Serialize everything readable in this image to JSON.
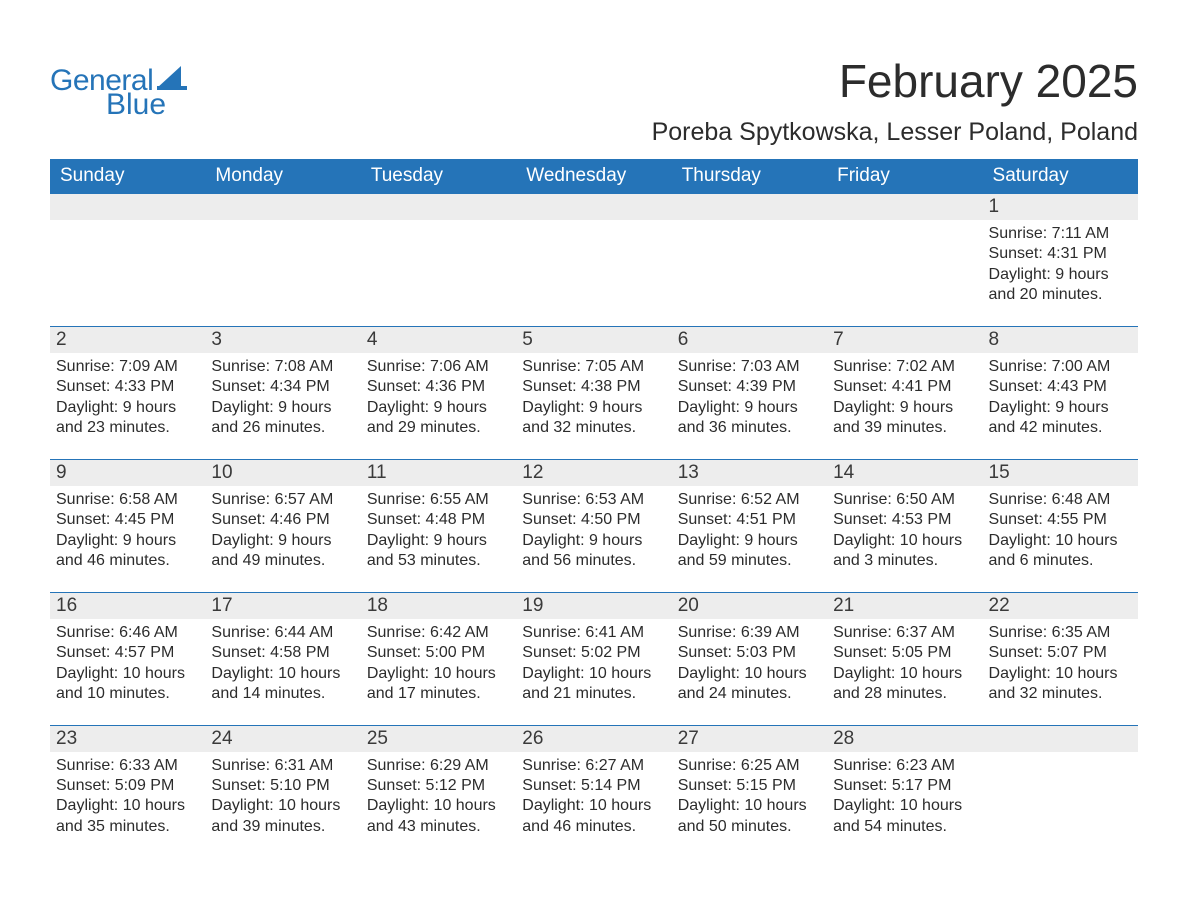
{
  "colors": {
    "brand_blue": "#2574b8",
    "header_text": "#ffffff",
    "body_text": "#2c2c2c",
    "daynum_bg": "#ededed",
    "page_bg": "#ffffff"
  },
  "typography": {
    "base_family": "Arial, Helvetica, sans-serif",
    "month_title_pt": 46,
    "location_pt": 25,
    "dow_pt": 19,
    "daynum_pt": 19,
    "body_pt": 16
  },
  "logo": {
    "text1": "General",
    "text2": "Blue"
  },
  "title": "February 2025",
  "location": "Poreba Spytkowska, Lesser Poland, Poland",
  "days_of_week": [
    "Sunday",
    "Monday",
    "Tuesday",
    "Wednesday",
    "Thursday",
    "Friday",
    "Saturday"
  ],
  "weeks": [
    {
      "cells": [
        null,
        null,
        null,
        null,
        null,
        null,
        {
          "n": "1",
          "sunrise": "Sunrise: 7:11 AM",
          "sunset": "Sunset: 4:31 PM",
          "dl1": "Daylight: 9 hours",
          "dl2": "and 20 minutes."
        }
      ]
    },
    {
      "cells": [
        {
          "n": "2",
          "sunrise": "Sunrise: 7:09 AM",
          "sunset": "Sunset: 4:33 PM",
          "dl1": "Daylight: 9 hours",
          "dl2": "and 23 minutes."
        },
        {
          "n": "3",
          "sunrise": "Sunrise: 7:08 AM",
          "sunset": "Sunset: 4:34 PM",
          "dl1": "Daylight: 9 hours",
          "dl2": "and 26 minutes."
        },
        {
          "n": "4",
          "sunrise": "Sunrise: 7:06 AM",
          "sunset": "Sunset: 4:36 PM",
          "dl1": "Daylight: 9 hours",
          "dl2": "and 29 minutes."
        },
        {
          "n": "5",
          "sunrise": "Sunrise: 7:05 AM",
          "sunset": "Sunset: 4:38 PM",
          "dl1": "Daylight: 9 hours",
          "dl2": "and 32 minutes."
        },
        {
          "n": "6",
          "sunrise": "Sunrise: 7:03 AM",
          "sunset": "Sunset: 4:39 PM",
          "dl1": "Daylight: 9 hours",
          "dl2": "and 36 minutes."
        },
        {
          "n": "7",
          "sunrise": "Sunrise: 7:02 AM",
          "sunset": "Sunset: 4:41 PM",
          "dl1": "Daylight: 9 hours",
          "dl2": "and 39 minutes."
        },
        {
          "n": "8",
          "sunrise": "Sunrise: 7:00 AM",
          "sunset": "Sunset: 4:43 PM",
          "dl1": "Daylight: 9 hours",
          "dl2": "and 42 minutes."
        }
      ]
    },
    {
      "cells": [
        {
          "n": "9",
          "sunrise": "Sunrise: 6:58 AM",
          "sunset": "Sunset: 4:45 PM",
          "dl1": "Daylight: 9 hours",
          "dl2": "and 46 minutes."
        },
        {
          "n": "10",
          "sunrise": "Sunrise: 6:57 AM",
          "sunset": "Sunset: 4:46 PM",
          "dl1": "Daylight: 9 hours",
          "dl2": "and 49 minutes."
        },
        {
          "n": "11",
          "sunrise": "Sunrise: 6:55 AM",
          "sunset": "Sunset: 4:48 PM",
          "dl1": "Daylight: 9 hours",
          "dl2": "and 53 minutes."
        },
        {
          "n": "12",
          "sunrise": "Sunrise: 6:53 AM",
          "sunset": "Sunset: 4:50 PM",
          "dl1": "Daylight: 9 hours",
          "dl2": "and 56 minutes."
        },
        {
          "n": "13",
          "sunrise": "Sunrise: 6:52 AM",
          "sunset": "Sunset: 4:51 PM",
          "dl1": "Daylight: 9 hours",
          "dl2": "and 59 minutes."
        },
        {
          "n": "14",
          "sunrise": "Sunrise: 6:50 AM",
          "sunset": "Sunset: 4:53 PM",
          "dl1": "Daylight: 10 hours",
          "dl2": "and 3 minutes."
        },
        {
          "n": "15",
          "sunrise": "Sunrise: 6:48 AM",
          "sunset": "Sunset: 4:55 PM",
          "dl1": "Daylight: 10 hours",
          "dl2": "and 6 minutes."
        }
      ]
    },
    {
      "cells": [
        {
          "n": "16",
          "sunrise": "Sunrise: 6:46 AM",
          "sunset": "Sunset: 4:57 PM",
          "dl1": "Daylight: 10 hours",
          "dl2": "and 10 minutes."
        },
        {
          "n": "17",
          "sunrise": "Sunrise: 6:44 AM",
          "sunset": "Sunset: 4:58 PM",
          "dl1": "Daylight: 10 hours",
          "dl2": "and 14 minutes."
        },
        {
          "n": "18",
          "sunrise": "Sunrise: 6:42 AM",
          "sunset": "Sunset: 5:00 PM",
          "dl1": "Daylight: 10 hours",
          "dl2": "and 17 minutes."
        },
        {
          "n": "19",
          "sunrise": "Sunrise: 6:41 AM",
          "sunset": "Sunset: 5:02 PM",
          "dl1": "Daylight: 10 hours",
          "dl2": "and 21 minutes."
        },
        {
          "n": "20",
          "sunrise": "Sunrise: 6:39 AM",
          "sunset": "Sunset: 5:03 PM",
          "dl1": "Daylight: 10 hours",
          "dl2": "and 24 minutes."
        },
        {
          "n": "21",
          "sunrise": "Sunrise: 6:37 AM",
          "sunset": "Sunset: 5:05 PM",
          "dl1": "Daylight: 10 hours",
          "dl2": "and 28 minutes."
        },
        {
          "n": "22",
          "sunrise": "Sunrise: 6:35 AM",
          "sunset": "Sunset: 5:07 PM",
          "dl1": "Daylight: 10 hours",
          "dl2": "and 32 minutes."
        }
      ]
    },
    {
      "cells": [
        {
          "n": "23",
          "sunrise": "Sunrise: 6:33 AM",
          "sunset": "Sunset: 5:09 PM",
          "dl1": "Daylight: 10 hours",
          "dl2": "and 35 minutes."
        },
        {
          "n": "24",
          "sunrise": "Sunrise: 6:31 AM",
          "sunset": "Sunset: 5:10 PM",
          "dl1": "Daylight: 10 hours",
          "dl2": "and 39 minutes."
        },
        {
          "n": "25",
          "sunrise": "Sunrise: 6:29 AM",
          "sunset": "Sunset: 5:12 PM",
          "dl1": "Daylight: 10 hours",
          "dl2": "and 43 minutes."
        },
        {
          "n": "26",
          "sunrise": "Sunrise: 6:27 AM",
          "sunset": "Sunset: 5:14 PM",
          "dl1": "Daylight: 10 hours",
          "dl2": "and 46 minutes."
        },
        {
          "n": "27",
          "sunrise": "Sunrise: 6:25 AM",
          "sunset": "Sunset: 5:15 PM",
          "dl1": "Daylight: 10 hours",
          "dl2": "and 50 minutes."
        },
        {
          "n": "28",
          "sunrise": "Sunrise: 6:23 AM",
          "sunset": "Sunset: 5:17 PM",
          "dl1": "Daylight: 10 hours",
          "dl2": "and 54 minutes."
        },
        null
      ]
    }
  ]
}
